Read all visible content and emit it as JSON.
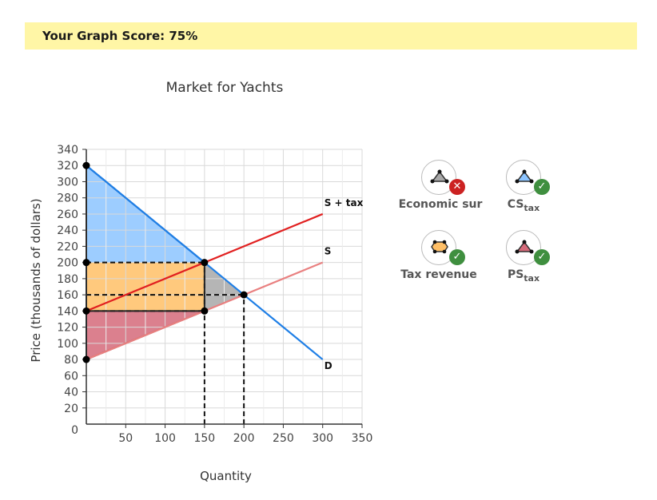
{
  "score": {
    "text": "Your Graph Score: 75%"
  },
  "chart_data": {
    "type": "line",
    "title": "Market for Yachts",
    "xlabel": "Quantity",
    "ylabel": "Price (thousands of dollars)",
    "xlim": [
      0,
      350
    ],
    "ylim": [
      0,
      340
    ],
    "x_ticks": [
      50,
      100,
      150,
      200,
      250,
      300,
      350
    ],
    "y_ticks": [
      20,
      40,
      60,
      80,
      100,
      120,
      140,
      160,
      180,
      200,
      220,
      240,
      260,
      280,
      300,
      320,
      340
    ],
    "origin_label": "0",
    "grid": true,
    "series": [
      {
        "name": "D",
        "points": [
          [
            0,
            320
          ],
          [
            300,
            80
          ]
        ],
        "color": "#1f7fe6"
      },
      {
        "name": "S",
        "points": [
          [
            0,
            80
          ],
          [
            300,
            200
          ]
        ],
        "color": "#e98080"
      },
      {
        "name": "S + tax",
        "points": [
          [
            0,
            140
          ],
          [
            300,
            260
          ]
        ],
        "color": "#e12020"
      }
    ],
    "areas": [
      {
        "name": "CS tax",
        "polygon": [
          [
            0,
            320
          ],
          [
            150,
            200
          ],
          [
            0,
            200
          ]
        ],
        "color": "#8cc4ff"
      },
      {
        "name": "Tax revenue",
        "polygon": [
          [
            0,
            200
          ],
          [
            150,
            200
          ],
          [
            150,
            140
          ],
          [
            0,
            140
          ]
        ],
        "color": "#ffbf66"
      },
      {
        "name": "PS tax",
        "polygon": [
          [
            0,
            140
          ],
          [
            150,
            140
          ],
          [
            0,
            80
          ]
        ],
        "color": "#d56a7a"
      },
      {
        "name": "Deadweight loss",
        "polygon": [
          [
            150,
            200
          ],
          [
            200,
            160
          ],
          [
            150,
            140
          ]
        ],
        "color": "#a8a8a8"
      }
    ],
    "points": [
      [
        0,
        320
      ],
      [
        0,
        200
      ],
      [
        0,
        140
      ],
      [
        0,
        80
      ],
      [
        150,
        200
      ],
      [
        150,
        140
      ],
      [
        200,
        160
      ]
    ],
    "reference_lines": [
      {
        "from": [
          0,
          200
        ],
        "to": [
          150,
          200
        ]
      },
      {
        "from": [
          0,
          160
        ],
        "to": [
          200,
          160
        ]
      },
      {
        "from": [
          0,
          140
        ],
        "to": [
          150,
          140
        ]
      },
      {
        "from": [
          150,
          0
        ],
        "to": [
          150,
          200
        ]
      },
      {
        "from": [
          200,
          0
        ],
        "to": [
          200,
          160
        ]
      }
    ]
  },
  "legend": {
    "items": [
      {
        "label": "Economic sur",
        "status": "wrong",
        "badge": "✕"
      },
      {
        "label": "CS",
        "sub": "tax",
        "status": "correct",
        "badge": "✓"
      },
      {
        "label": "Tax revenue",
        "status": "correct",
        "badge": "✓"
      },
      {
        "label": "PS",
        "sub": "tax",
        "status": "correct",
        "badge": "✓"
      }
    ]
  }
}
